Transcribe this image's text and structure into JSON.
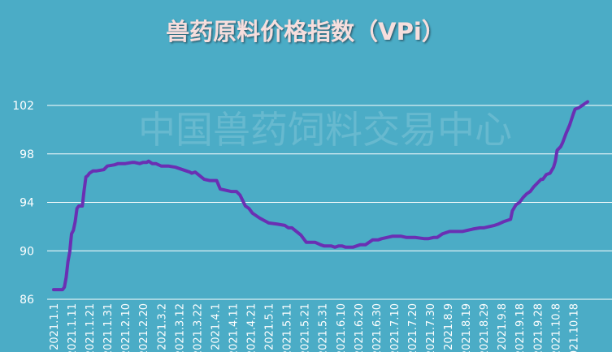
{
  "colors": {
    "background": "#4bacc6",
    "line": "#6a2fb3",
    "grid": "#ffffff",
    "text": "#ffffff",
    "title": "#f6dedd",
    "watermark": "rgba(255,255,255,0.16)"
  },
  "watermark": "中国兽药饲料交易中心",
  "chart_data": {
    "type": "line",
    "title": "兽药原料价格指数（VPi）",
    "xlabel": "",
    "ylabel": "",
    "ylim": [
      86,
      102
    ],
    "yticks": [
      86,
      90,
      94,
      98,
      102
    ],
    "grid": true,
    "legend": "none",
    "xticks": [
      "2021.1.1",
      "2021.1.11",
      "2021.1.21",
      "2021.1.31",
      "2021.2.10",
      "2021.2.20",
      "2021.3.2",
      "2021.3.12",
      "2021.3.22",
      "2021.4.1",
      "2021.4.11",
      "2021.4.21",
      "2021.5.1",
      "2021.5.11",
      "2021.5.21",
      "2021.5.31",
      "2021.6.10",
      "2021.6.20",
      "2021.6.30",
      "2021.7.10",
      "2021.7.20",
      "2021.7.30",
      "2021.8.9",
      "2021.8.19",
      "2021.8.29",
      "2021.9.8",
      "2021.9.18",
      "2021.9.28",
      "2021.10.8",
      "2021.10.18"
    ],
    "series": [
      {
        "x": [
          "2021-01-01",
          "2021-01-05",
          "2021-01-06",
          "2021-01-07",
          "2021-01-08",
          "2021-01-09",
          "2021-01-10",
          "2021-01-11",
          "2021-01-12",
          "2021-01-13",
          "2021-01-14",
          "2021-01-15",
          "2021-01-17",
          "2021-01-18",
          "2021-01-19",
          "2021-01-20",
          "2021-01-21",
          "2021-01-23",
          "2021-01-25",
          "2021-01-29",
          "2021-01-31",
          "2021-02-04",
          "2021-02-06",
          "2021-02-10",
          "2021-02-14",
          "2021-02-15",
          "2021-02-18",
          "2021-02-20",
          "2021-02-22",
          "2021-02-23",
          "2021-02-25",
          "2021-02-27",
          "2021-03-02",
          "2021-03-06",
          "2021-03-10",
          "2021-03-12",
          "2021-03-14",
          "2021-03-16",
          "2021-03-18",
          "2021-03-19",
          "2021-03-21",
          "2021-03-26",
          "2021-03-29",
          "2021-04-02",
          "2021-04-04",
          "2021-04-07",
          "2021-04-10",
          "2021-04-12",
          "2021-04-13",
          "2021-04-15",
          "2021-04-18",
          "2021-04-20",
          "2021-04-22",
          "2021-04-26",
          "2021-05-01",
          "2021-05-06",
          "2021-05-10",
          "2021-05-12",
          "2021-05-14",
          "2021-05-19",
          "2021-05-22",
          "2021-05-24",
          "2021-05-27",
          "2021-05-30",
          "2021-06-01",
          "2021-06-05",
          "2021-06-07",
          "2021-06-09",
          "2021-06-11",
          "2021-06-13",
          "2021-06-17",
          "2021-06-19",
          "2021-06-21",
          "2021-06-24",
          "2021-06-26",
          "2021-06-28",
          "2021-07-01",
          "2021-07-03",
          "2021-07-06",
          "2021-07-09",
          "2021-07-10",
          "2021-07-12",
          "2021-07-14",
          "2021-07-17",
          "2021-07-22",
          "2021-07-27",
          "2021-07-29",
          "2021-08-01",
          "2021-08-03",
          "2021-08-04",
          "2021-08-06",
          "2021-08-10",
          "2021-08-13",
          "2021-08-15",
          "2021-08-17",
          "2021-08-20",
          "2021-08-23",
          "2021-08-27",
          "2021-08-29",
          "2021-09-01",
          "2021-09-04",
          "2021-09-06",
          "2021-09-09",
          "2021-09-13",
          "2021-09-14",
          "2021-09-16",
          "2021-09-18",
          "2021-09-20",
          "2021-09-22",
          "2021-09-24",
          "2021-09-26",
          "2021-09-28",
          "2021-09-30",
          "2021-10-01",
          "2021-10-03",
          "2021-10-05",
          "2021-10-07",
          "2021-10-08",
          "2021-10-09",
          "2021-10-11",
          "2021-10-12",
          "2021-10-14",
          "2021-10-16",
          "2021-10-18",
          "2021-10-19",
          "2021-10-21",
          "2021-10-23",
          "2021-10-26"
        ],
        "y": [
          86.8,
          86.8,
          86.8,
          87.0,
          87.8,
          89.1,
          89.9,
          91.4,
          91.7,
          92.4,
          93.5,
          93.7,
          93.7,
          95.0,
          96.1,
          96.2,
          96.4,
          96.6,
          96.6,
          96.7,
          97.0,
          97.1,
          97.2,
          97.2,
          97.3,
          97.3,
          97.2,
          97.3,
          97.3,
          97.4,
          97.2,
          97.2,
          97.0,
          97.0,
          96.9,
          96.8,
          96.7,
          96.6,
          96.5,
          96.4,
          96.5,
          95.9,
          95.8,
          95.8,
          95.1,
          95.0,
          94.9,
          94.9,
          94.9,
          94.6,
          93.7,
          93.5,
          93.1,
          92.7,
          92.3,
          92.2,
          92.1,
          91.9,
          91.9,
          91.3,
          90.7,
          90.7,
          90.7,
          90.5,
          90.4,
          90.4,
          90.3,
          90.4,
          90.4,
          90.3,
          90.3,
          90.4,
          90.5,
          90.5,
          90.7,
          90.9,
          90.9,
          91.0,
          91.1,
          91.2,
          91.2,
          91.2,
          91.2,
          91.1,
          91.1,
          91.0,
          91.0,
          91.1,
          91.1,
          91.2,
          91.4,
          91.6,
          91.6,
          91.6,
          91.6,
          91.7,
          91.8,
          91.9,
          91.9,
          92.0,
          92.1,
          92.2,
          92.4,
          92.6,
          93.3,
          93.8,
          94.0,
          94.4,
          94.7,
          94.9,
          95.3,
          95.6,
          95.9,
          95.9,
          96.3,
          96.4,
          96.9,
          97.4,
          98.3,
          98.6,
          98.9,
          99.7,
          100.4,
          101.3,
          101.7,
          101.8,
          102.0,
          102.3
        ]
      }
    ]
  }
}
